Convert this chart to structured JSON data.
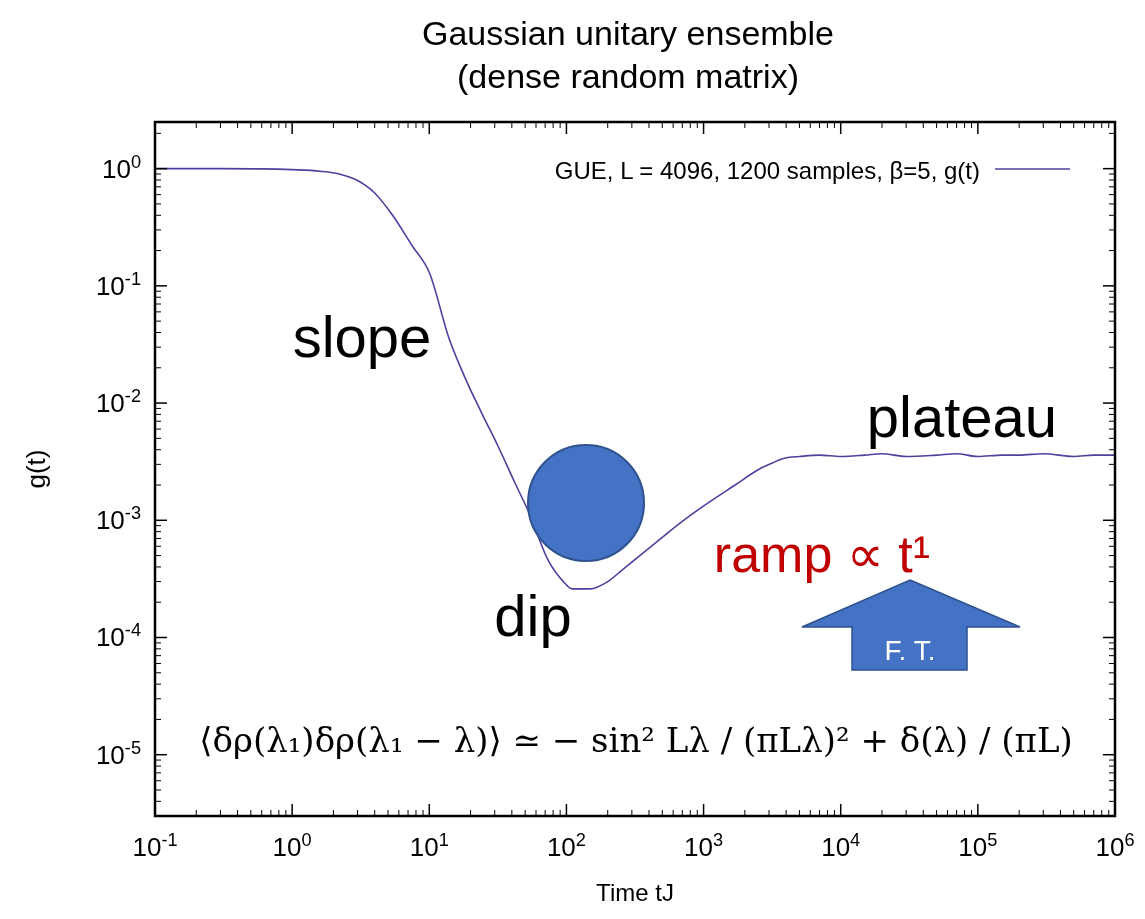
{
  "chart_data": {
    "type": "line",
    "title": "Gaussian unitary ensemble",
    "subtitle": "(dense random matrix)",
    "xlabel": "Time tJ",
    "ylabel": "g(t)",
    "log": "xy",
    "grid": false,
    "legend": "top right",
    "line_style": "solid",
    "xlim": [
      0.1,
      1000000
    ],
    "ylim": [
      3e-06,
      2.5
    ],
    "xticks": [
      {
        "value": 0.1,
        "label": "10$^{-1}$"
      },
      {
        "value": 1,
        "label": "10$^{0}$"
      },
      {
        "value": 10,
        "label": "10$^{1}$"
      },
      {
        "value": 100,
        "label": "10$^{2}$"
      },
      {
        "value": 1000,
        "label": "10$^{3}$"
      },
      {
        "value": 10000,
        "label": "10$^{4}$"
      },
      {
        "value": 100000,
        "label": "10$^{5}$"
      },
      {
        "value": 1000000,
        "label": "10$^{6}$"
      }
    ],
    "yticks": [
      {
        "value": 1e-05,
        "label": "10$^{-5}$"
      },
      {
        "value": 0.0001,
        "label": "10$^{-4}$"
      },
      {
        "value": 0.001,
        "label": "10$^{-3}$"
      },
      {
        "value": 0.01,
        "label": "10$^{-2}$"
      },
      {
        "value": 0.1,
        "label": "10$^{-1}$"
      },
      {
        "value": 1,
        "label": "10$^{0}$"
      }
    ],
    "series": [
      {
        "name": "GUE, L = 4096, 1200 samples, β=5, g(t)",
        "color": "#4b429c",
        "x": [
          0.1,
          0.3,
          0.6,
          1,
          1.6,
          2.2,
          2.95,
          4,
          5.4,
          7.5,
          10,
          14,
          18,
          24,
          32,
          42,
          53,
          74,
          95,
          110,
          149,
          200,
          257,
          380,
          540,
          800,
          1170,
          1700,
          2500,
          3200,
          3950,
          5000,
          7000,
          10000,
          15000,
          20000,
          30000,
          50000,
          70000,
          100000,
          150000,
          200000,
          300000,
          500000,
          700000,
          1000000
        ],
        "values": [
          1,
          1,
          0.995,
          0.98,
          0.95,
          0.9,
          0.8,
          0.62,
          0.4,
          0.22,
          0.13,
          0.035,
          0.017,
          0.0083,
          0.0042,
          0.0021,
          0.00118,
          0.00045,
          0.0003,
          0.00026,
          0.00026,
          0.0003,
          0.00038,
          0.00055,
          0.00077,
          0.0011,
          0.0015,
          0.002,
          0.0027,
          0.0031,
          0.0034,
          0.0035,
          0.0036,
          0.0035,
          0.0036,
          0.0037,
          0.0035,
          0.0036,
          0.0037,
          0.0035,
          0.0036,
          0.0036,
          0.0037,
          0.0035,
          0.0036,
          0.0036
        ]
      }
    ],
    "annotations": [
      "slope",
      "dip",
      "plateau",
      "ramp ∝ t¹",
      "F. T.",
      "⟨δρ(λ₁)δρ(λ₁ − λ)⟩ ≃ − sin² Lλ / (πLλ)² + δ(λ) / (πL)"
    ]
  }
}
